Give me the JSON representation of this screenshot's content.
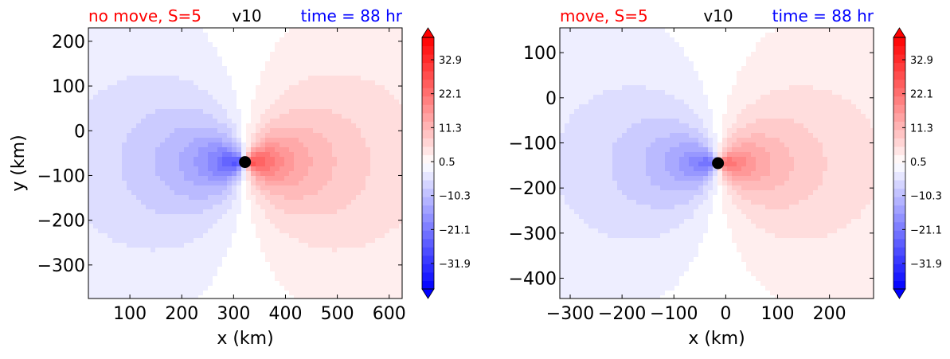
{
  "chart_data": [
    {
      "type": "heatmap",
      "title_left": "no move, S=5",
      "title_center": "v10",
      "title_right": "time = 88 hr",
      "title_left_color": "#ff0000",
      "title_center_color": "#000000",
      "title_right_color": "#0000ff",
      "xlabel": "x (km)",
      "ylabel": "y (km)",
      "xlim": [
        20,
        625
      ],
      "ylim": [
        -375,
        230
      ],
      "xticks": [
        100,
        200,
        300,
        400,
        500,
        600
      ],
      "xtick_labels": [
        "100",
        "200",
        "300",
        "400",
        "500",
        "600"
      ],
      "yticks": [
        200,
        100,
        0,
        -100,
        -200,
        -300
      ],
      "ytick_labels": [
        "200",
        "100",
        "0",
        "−100",
        "−200",
        "−300"
      ],
      "marker": {
        "x": 322,
        "y": -70
      },
      "colorbar": {
        "range": [
          -40,
          40
        ],
        "ticks": [
          32.9,
          22.1,
          11.3,
          0.5,
          -10.3,
          -21.1,
          -31.9
        ],
        "tick_labels": [
          "32.9",
          "22.1",
          "11.3",
          "0.5",
          "−10.3",
          "−21.1",
          "−31.9"
        ],
        "extend": "both",
        "cmap": "bwr"
      }
    },
    {
      "type": "heatmap",
      "title_left": "move, S=5",
      "title_center": "v10",
      "title_right": "time = 88 hr",
      "title_left_color": "#ff0000",
      "title_center_color": "#000000",
      "title_right_color": "#0000ff",
      "xlabel": "x (km)",
      "ylabel": "",
      "xlim": [
        -320,
        285
      ],
      "ylim": [
        -445,
        155
      ],
      "xticks": [
        -300,
        -200,
        -100,
        0,
        100,
        200
      ],
      "xtick_labels": [
        "−300",
        "−200",
        "−100",
        "0",
        "100",
        "200"
      ],
      "yticks": [
        100,
        0,
        -100,
        -200,
        -300,
        -400
      ],
      "ytick_labels": [
        "100",
        "0",
        "−100",
        "−200",
        "−300",
        "−400"
      ],
      "marker": {
        "x": -15,
        "y": -145
      },
      "colorbar": {
        "range": [
          -40,
          40
        ],
        "ticks": [
          32.9,
          22.1,
          11.3,
          0.5,
          -10.3,
          -21.1,
          -31.9
        ],
        "tick_labels": [
          "32.9",
          "22.1",
          "11.3",
          "0.5",
          "−10.3",
          "−21.1",
          "−31.9"
        ],
        "extend": "both",
        "cmap": "bwr"
      }
    }
  ]
}
